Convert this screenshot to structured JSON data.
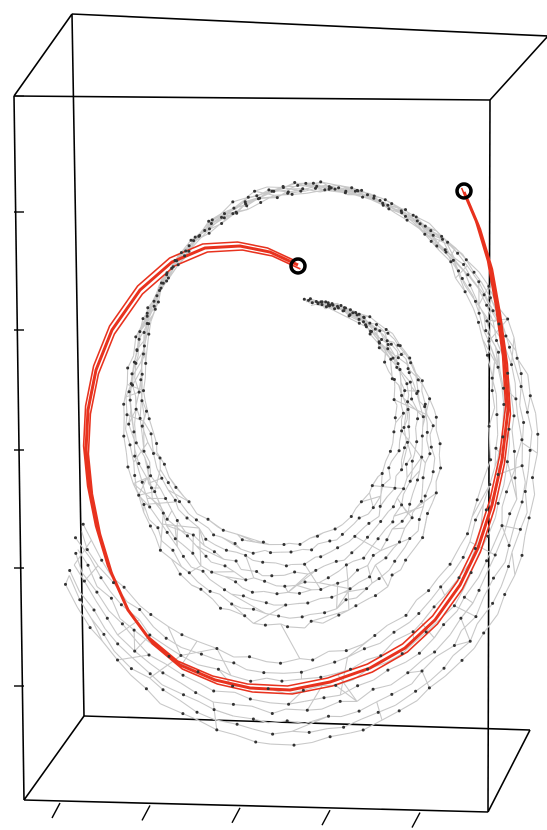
{
  "figure": {
    "kind": "3d-swiss-roll-neighborhood-graph",
    "colors": {
      "background": "#ffffff",
      "box_lines": "#000000",
      "graph_edges": "#c8c8c8",
      "graph_nodes": "#333333",
      "shortest_path": "#e8321e",
      "endpoint_ring": "#000000"
    },
    "labels": {
      "title": "",
      "xlabel": "",
      "ylabel": "",
      "zlabel": ""
    },
    "path": {
      "endpoints": 2
    }
  }
}
